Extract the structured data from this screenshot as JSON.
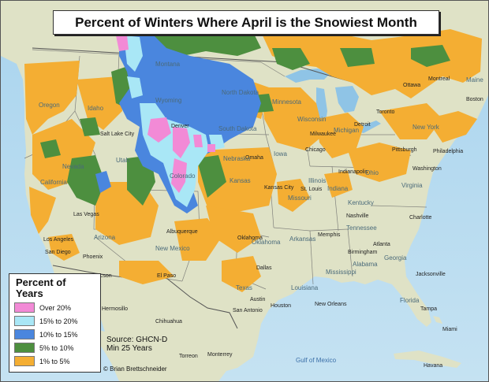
{
  "title": "Percent of Winters Where April is the Snowiest Month",
  "legend": {
    "title": "Percent of Years",
    "items": [
      {
        "label": "Over 20%",
        "color": "#f28ad6"
      },
      {
        "label": "15% to 20%",
        "color": "#a9e7f6"
      },
      {
        "label": "10% to 15%",
        "color": "#4a86de"
      },
      {
        "label": "5% to 10%",
        "color": "#4d8f3f"
      },
      {
        "label": "1% to 5%",
        "color": "#f4ae33"
      }
    ]
  },
  "source": {
    "line1": "Source: GHCN-D",
    "line2": "Min 25 Years"
  },
  "credit": "© Brian Brettschneider",
  "labels": {
    "cities": [
      "Denver",
      "Chicago",
      "Phoenix",
      "Dallas",
      "Houston",
      "Austin",
      "San Antonio",
      "Atlanta",
      "Memphis",
      "Nashville",
      "Boston",
      "Pittsburgh",
      "Milwaukee",
      "Detroit",
      "Oklahoma",
      "Kansas City",
      "Omaha",
      "St. Louis",
      "Jacksonville",
      "Tampa",
      "Miami",
      "Havana",
      "Monterrey",
      "Chihuahua",
      "Hermosillo",
      "Torreon",
      "Las Vegas",
      "Los Angeles",
      "San Diego",
      "Tucson",
      "El Paso",
      "Albuquerque",
      "Salt Lake City",
      "Indianapolis",
      "Charlotte",
      "Birmingham",
      "New Orleans",
      "Toronto",
      "Montreal",
      "Ottawa",
      "Philadelphia",
      "Washington"
    ],
    "states": [
      "Texas",
      "Kansas",
      "Colorado",
      "Wyoming",
      "Montana",
      "Nevada",
      "Utah",
      "Arizona",
      "Oklahoma",
      "Missouri",
      "Illinois",
      "Georgia",
      "Alabama",
      "Florida",
      "Mississippi",
      "Louisiana",
      "Arkansas",
      "Tennessee",
      "Kentucky",
      "Virginia",
      "Ohio",
      "New York",
      "Iowa",
      "Nebraska",
      "Minnesota",
      "Wisconsin",
      "Michigan",
      "Idaho",
      "Oregon",
      "California",
      "New Mexico",
      "South Dakota",
      "North Dakota",
      "Indiana",
      "Maine"
    ],
    "water": [
      "Gulf of Mexico"
    ]
  }
}
